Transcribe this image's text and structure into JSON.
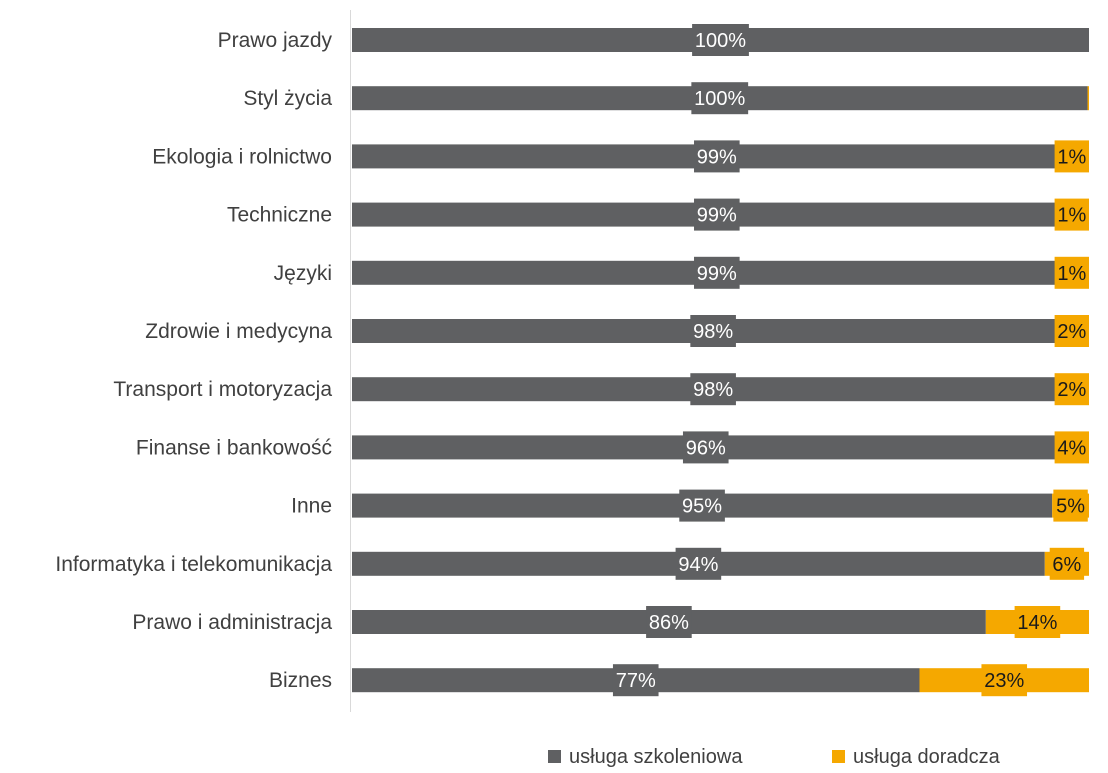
{
  "chart_data": {
    "type": "bar",
    "orientation": "horizontal",
    "stacked": "100%",
    "categories": [
      "Prawo jazdy",
      "Styl życia",
      "Ekologia i rolnictwo",
      "Techniczne",
      "Języki",
      "Zdrowie i medycyna",
      "Transport i motoryzacja",
      "Finanse i bankowość",
      "Inne",
      "Informatyka i telekomunikacja",
      "Prawo i administracja",
      "Biznes"
    ],
    "series": [
      {
        "name": "usługa szkoleniowa",
        "color": "#5f6062",
        "label_color": "#ffffff",
        "values": [
          100,
          99.8,
          99,
          99,
          99,
          98,
          98,
          96,
          95,
          94,
          86,
          77
        ],
        "labels": [
          "100%",
          "100%",
          "99%",
          "99%",
          "99%",
          "98%",
          "98%",
          "96%",
          "95%",
          "94%",
          "86%",
          "77%"
        ]
      },
      {
        "name": "usługa doradcza",
        "color": "#f5a800",
        "label_color": "#1a1a1a",
        "values": [
          0,
          0.2,
          1,
          1,
          1,
          2,
          2,
          4,
          5,
          6,
          14,
          23
        ],
        "labels": [
          "",
          "",
          "1%",
          "1%",
          "1%",
          "2%",
          "2%",
          "4%",
          "5%",
          "6%",
          "14%",
          "23%"
        ]
      }
    ],
    "xlim": [
      0,
      100
    ],
    "grid": false,
    "legend_position": "bottom"
  }
}
